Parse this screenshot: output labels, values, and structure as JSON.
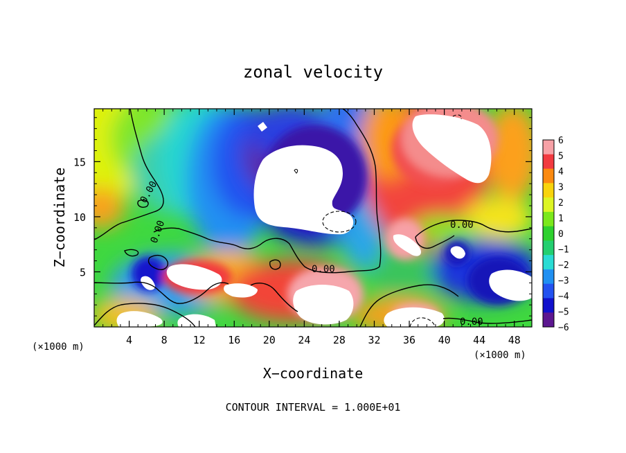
{
  "chart_data": {
    "type": "heatmap",
    "title": "zonal velocity",
    "xlabel": "X−coordinate",
    "ylabel": "Z−coordinate",
    "x_unit_left": "(×1000 m)",
    "x_unit_right": "(×1000 m)",
    "footer": "CONTOUR INTERVAL = 1.000E+01",
    "xlim": [
      0,
      50
    ],
    "ylim": [
      0,
      19.8
    ],
    "x_ticks": [
      4,
      8,
      12,
      16,
      20,
      24,
      28,
      32,
      36,
      40,
      44,
      48
    ],
    "y_ticks": [
      5,
      10,
      15
    ],
    "colorbar": {
      "range": [
        -6,
        6
      ],
      "labels": [
        "6",
        "5",
        "4",
        "3",
        "2",
        "1",
        "0",
        "−1",
        "−2",
        "−3",
        "−4",
        "−5",
        "−6"
      ],
      "colors": [
        "#f7a1a6",
        "#f23a40",
        "#fc8a10",
        "#f8d40c",
        "#ddf524",
        "#7be81b",
        "#2ed12e",
        "#23cf70",
        "#29dcd4",
        "#2090f2",
        "#2352f0",
        "#1111cc",
        "#5c1790"
      ]
    },
    "contour_labels": [
      "0.00",
      "0.00",
      "0.00",
      "0.00",
      "0.00"
    ],
    "grid": false
  }
}
